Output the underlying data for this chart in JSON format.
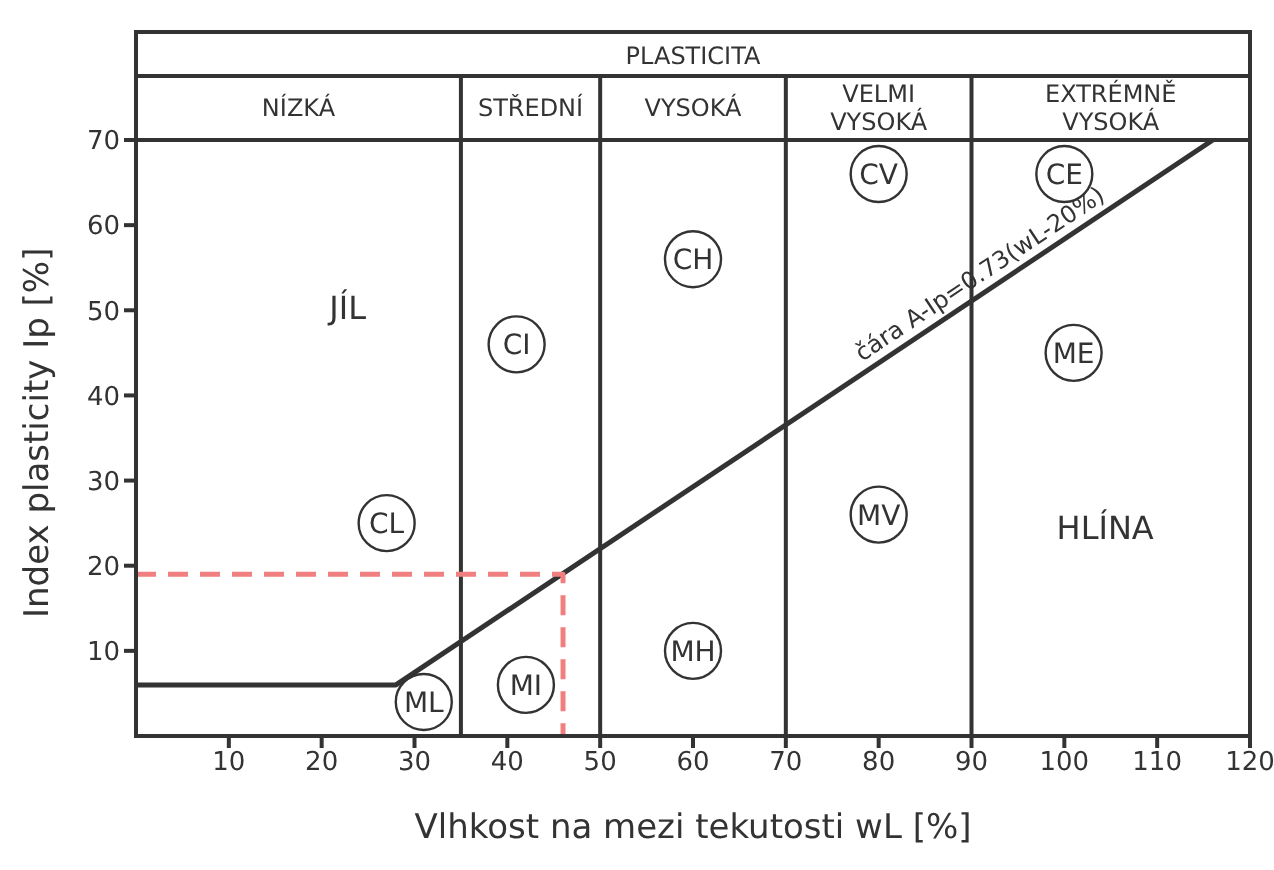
{
  "chart_data": {
    "type": "line",
    "xlabel": "Vlhkost na mezi tekutosti wL [%]",
    "ylabel": "Index plasticity Ip [%]",
    "xlim": [
      0,
      120
    ],
    "xticks": [
      10,
      20,
      30,
      40,
      50,
      60,
      70,
      80,
      90,
      100,
      110,
      120
    ],
    "ylim": [
      0,
      70
    ],
    "yticks": [
      10,
      20,
      30,
      40,
      50,
      60,
      70
    ],
    "grid": false,
    "legend": false,
    "marker": "none",
    "series": [
      {
        "name": "čára A-Ip=0.73(wL-20%)",
        "color": "#333333",
        "line_style": "solid",
        "x": [
          0,
          28,
          116
        ],
        "values": [
          6,
          6,
          70
        ]
      },
      {
        "color": "#f08080",
        "line_style": "dashed",
        "x": [
          0,
          46,
          46
        ],
        "values": [
          19,
          19,
          0
        ]
      }
    ],
    "ref_lines": [
      {
        "axis": "x",
        "value": 35,
        "color": "#333333"
      },
      {
        "axis": "x",
        "value": 50,
        "color": "#333333"
      },
      {
        "axis": "x",
        "value": 70,
        "color": "#333333"
      },
      {
        "axis": "x",
        "value": 90,
        "color": "#333333"
      }
    ],
    "annotations": [
      "PLASTICITA",
      "NÍZKÁ",
      "STŘEDNÍ",
      "VYSOKÁ",
      "VELMI\nVYSOKÁ",
      "EXTRÉMNĚ\nVYSOKÁ",
      "JÍL",
      "HLÍNA",
      {
        "text": "CL",
        "x": 27,
        "y": 25
      },
      {
        "text": "CI",
        "x": 41,
        "y": 46
      },
      {
        "text": "CH",
        "x": 60,
        "y": 56
      },
      {
        "text": "CV",
        "x": 80,
        "y": 66
      },
      {
        "text": "CE",
        "x": 100,
        "y": 66
      },
      {
        "text": "ML",
        "x": 31,
        "y": 4
      },
      {
        "text": "MI",
        "x": 42,
        "y": 6
      },
      {
        "text": "MH",
        "x": 60,
        "y": 10
      },
      {
        "text": "MV",
        "x": 80,
        "y": 26
      },
      {
        "text": "ME",
        "x": 101,
        "y": 45
      }
    ]
  }
}
